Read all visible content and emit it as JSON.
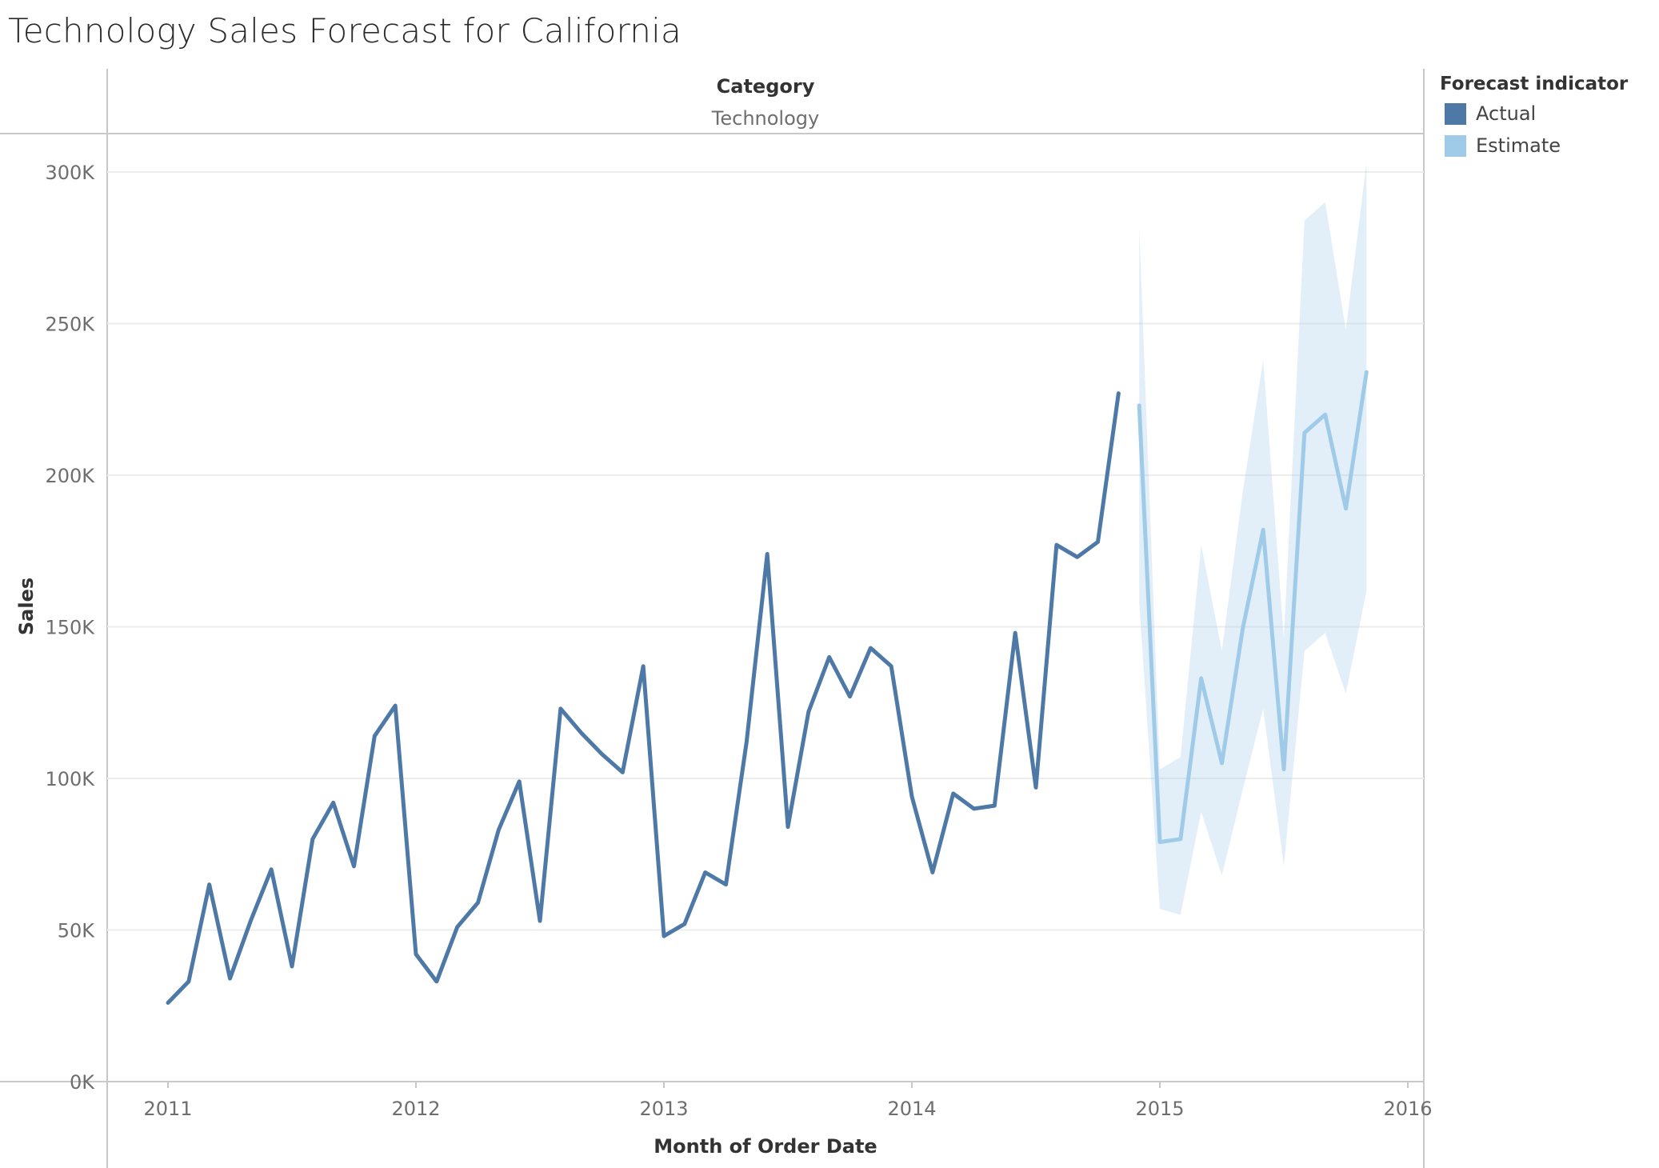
{
  "title": "Technology Sales Forecast for California",
  "header": {
    "field": "Category",
    "value": "Technology"
  },
  "legend": {
    "title": "Forecast indicator",
    "items": [
      {
        "label": "Actual",
        "color": "#4e79a7"
      },
      {
        "label": "Estimate",
        "color": "#a0cbe8"
      }
    ]
  },
  "chart_data": {
    "type": "line",
    "title": "Technology Sales Forecast for California",
    "xlabel": "Month of Order Date",
    "ylabel": "Sales",
    "ylim": [
      0,
      300000
    ],
    "yticks": [
      0,
      50000,
      100000,
      150000,
      200000,
      250000,
      300000
    ],
    "ytick_labels": [
      "0K",
      "50K",
      "100K",
      "150K",
      "200K",
      "250K",
      "300K"
    ],
    "xticks": [
      "2011",
      "2012",
      "2013",
      "2014",
      "2015",
      "2016"
    ],
    "series": [
      {
        "name": "Actual",
        "color": "#4e79a7",
        "x": [
          "2011-01",
          "2011-02",
          "2011-03",
          "2011-04",
          "2011-05",
          "2011-06",
          "2011-07",
          "2011-08",
          "2011-09",
          "2011-10",
          "2011-11",
          "2011-12",
          "2012-01",
          "2012-02",
          "2012-03",
          "2012-04",
          "2012-05",
          "2012-06",
          "2012-07",
          "2012-08",
          "2012-09",
          "2012-10",
          "2012-11",
          "2012-12",
          "2013-01",
          "2013-02",
          "2013-03",
          "2013-04",
          "2013-05",
          "2013-06",
          "2013-07",
          "2013-08",
          "2013-09",
          "2013-10",
          "2013-11",
          "2013-12",
          "2014-01",
          "2014-02",
          "2014-03",
          "2014-04",
          "2014-05",
          "2014-06",
          "2014-07",
          "2014-08",
          "2014-09",
          "2014-10",
          "2014-11"
        ],
        "values": [
          26000,
          33000,
          65000,
          34000,
          53000,
          70000,
          38000,
          80000,
          92000,
          71000,
          114000,
          124000,
          42000,
          33000,
          51000,
          59000,
          83000,
          99000,
          53000,
          123000,
          115000,
          108000,
          102000,
          137000,
          48000,
          52000,
          69000,
          65000,
          112000,
          174000,
          84000,
          122000,
          140000,
          127000,
          143000,
          137000,
          94000,
          69000,
          95000,
          90000,
          91000,
          148000,
          97000,
          177000,
          173000,
          178000,
          227000
        ]
      },
      {
        "name": "Estimate",
        "color": "#a0cbe8",
        "x": [
          "2014-12",
          "2015-01",
          "2015-02",
          "2015-03",
          "2015-04",
          "2015-05",
          "2015-06",
          "2015-07",
          "2015-08",
          "2015-09",
          "2015-10",
          "2015-11"
        ],
        "values": [
          223000,
          79000,
          80000,
          133000,
          105000,
          149000,
          182000,
          103000,
          214000,
          220000,
          189000,
          234000
        ],
        "lower": [
          158000,
          57000,
          55000,
          89000,
          68000,
          96000,
          123000,
          71000,
          142000,
          148000,
          128000,
          162000
        ],
        "upper": [
          282000,
          103000,
          107000,
          177000,
          142000,
          194000,
          238000,
          146000,
          284000,
          290000,
          248000,
          303000
        ]
      }
    ],
    "grid": true
  }
}
